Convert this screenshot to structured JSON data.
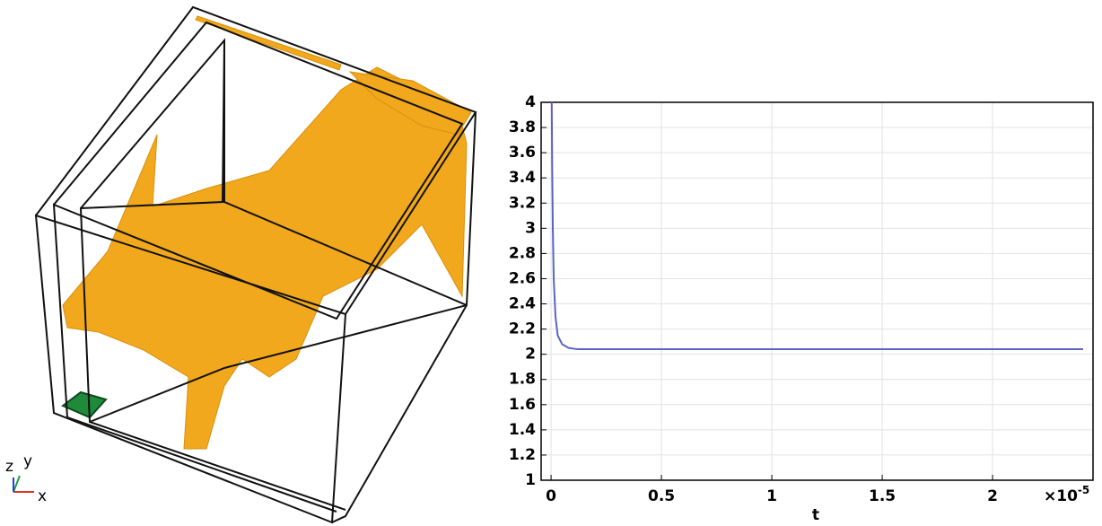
{
  "view3d": {
    "axes": {
      "z": "z",
      "y": "y",
      "x": "x"
    }
  },
  "chart_data": {
    "type": "line",
    "xlabel": "t",
    "x_multiplier": "×10",
    "x_multiplier_exponent": "-5",
    "xlim": [
      -0.045,
      2.455
    ],
    "ylim": [
      1,
      4
    ],
    "xticks": [
      0,
      0.5,
      1,
      1.5,
      2
    ],
    "yticks": [
      1,
      1.2,
      1.4,
      1.6,
      1.8,
      2,
      2.2,
      2.4,
      2.6,
      2.8,
      3,
      3.2,
      3.4,
      3.6,
      3.8,
      4
    ],
    "grid": true,
    "series": [
      {
        "color": "#5b63c4",
        "x": [
          0.003,
          0.005,
          0.008,
          0.012,
          0.02,
          0.03,
          0.05,
          0.08,
          0.12,
          0.2,
          0.5,
          1,
          1.5,
          2,
          2.41
        ],
        "values": [
          4,
          3.5,
          3.0,
          2.6,
          2.3,
          2.15,
          2.08,
          2.05,
          2.04,
          2.04,
          2.04,
          2.04,
          2.04,
          2.04,
          2.04
        ]
      }
    ]
  }
}
